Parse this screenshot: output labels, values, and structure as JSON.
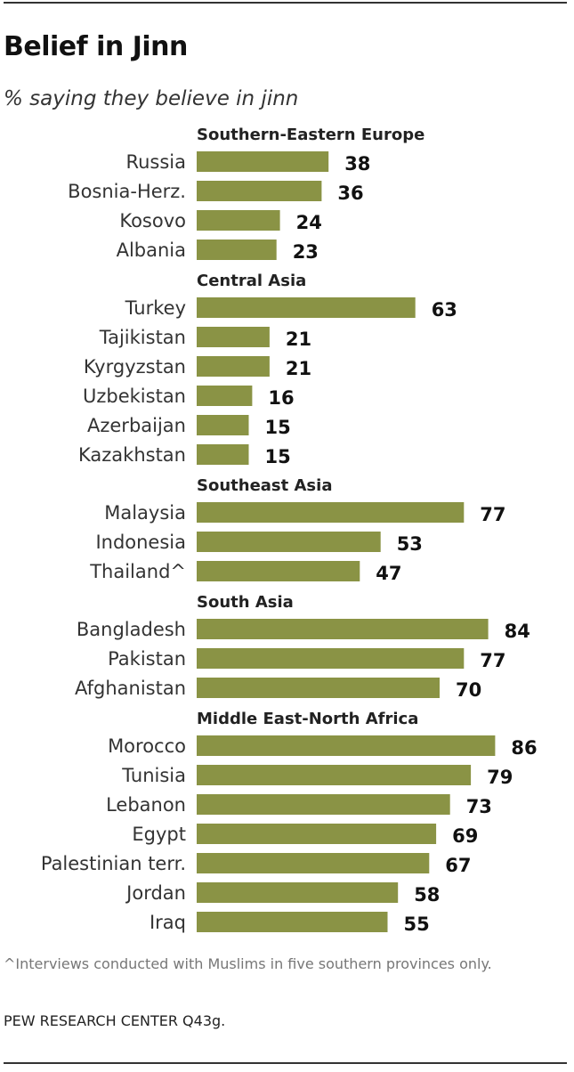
{
  "title": "Belief in Jinn",
  "subtitle": "% saying they believe in jinn",
  "footnote": "^Interviews conducted with Muslims in five southern provinces only.",
  "source": "PEW RESEARCH CENTER Q43g.",
  "colors": {
    "bar": "#8a9345",
    "text": "#222222",
    "rule": "#333333"
  },
  "chart_data": {
    "type": "bar",
    "orientation": "horizontal",
    "xlim": [
      0,
      100
    ],
    "grid": false,
    "groups": [
      {
        "name": "Southern-Eastern Europe",
        "categories": [
          "Russia",
          "Bosnia-Herz.",
          "Kosovo",
          "Albania"
        ],
        "values": [
          38,
          36,
          24,
          23
        ]
      },
      {
        "name": "Central Asia",
        "categories": [
          "Turkey",
          "Tajikistan",
          "Kyrgyzstan",
          "Uzbekistan",
          "Azerbaijan",
          "Kazakhstan"
        ],
        "values": [
          63,
          21,
          21,
          16,
          15,
          15
        ]
      },
      {
        "name": "Southeast Asia",
        "categories": [
          "Malaysia",
          "Indonesia",
          "Thailand^"
        ],
        "values": [
          77,
          53,
          47
        ]
      },
      {
        "name": "South Asia",
        "categories": [
          "Bangladesh",
          "Pakistan",
          "Afghanistan"
        ],
        "values": [
          84,
          77,
          70
        ]
      },
      {
        "name": "Middle East-North Africa",
        "categories": [
          "Morocco",
          "Tunisia",
          "Lebanon",
          "Egypt",
          "Palestinian terr.",
          "Jordan",
          "Iraq"
        ],
        "values": [
          86,
          79,
          73,
          69,
          67,
          58,
          55
        ]
      }
    ]
  }
}
